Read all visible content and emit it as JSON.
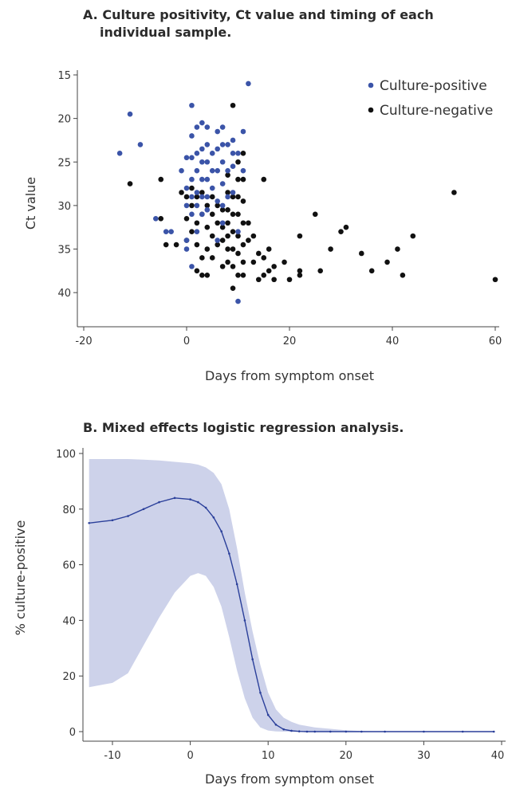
{
  "titles": {
    "a_line1": "A. Culture positivity, Ct value and timing of each",
    "a_line2": "individual sample.",
    "b": "B. Mixed effects logistic regression analysis."
  },
  "colors": {
    "positive": "#3b54a8",
    "negative": "#111111",
    "band": "#cdd2ea",
    "line": "#2a3f9a"
  },
  "chart_data": [
    {
      "type": "scatter",
      "xlabel": "Days from symptom onset",
      "ylabel": "Ct value",
      "xlim": [
        -20,
        60
      ],
      "ylim": [
        15,
        42
      ],
      "y_inverted": true,
      "xticks": [
        -20,
        0,
        20,
        40,
        60
      ],
      "yticks": [
        15,
        20,
        25,
        30,
        35,
        40
      ],
      "legend_position": "top-right",
      "series": [
        {
          "name": "Culture-positive",
          "points": [
            [
              -13,
              24
            ],
            [
              -11,
              19.5
            ],
            [
              -9,
              23
            ],
            [
              -6,
              31.5
            ],
            [
              -4,
              33
            ],
            [
              -3,
              33
            ],
            [
              -1,
              26
            ],
            [
              0,
              24.5
            ],
            [
              0,
              28
            ],
            [
              0,
              30
            ],
            [
              0,
              34
            ],
            [
              0,
              35
            ],
            [
              1,
              18.5
            ],
            [
              1,
              22
            ],
            [
              1,
              24.5
            ],
            [
              1,
              27
            ],
            [
              1,
              29
            ],
            [
              1,
              31
            ],
            [
              1,
              37
            ],
            [
              2,
              21
            ],
            [
              2,
              24
            ],
            [
              2,
              26
            ],
            [
              2,
              28.5
            ],
            [
              2,
              30
            ],
            [
              2,
              33
            ],
            [
              3,
              20.5
            ],
            [
              3,
              23.5
            ],
            [
              3,
              25
            ],
            [
              3,
              27
            ],
            [
              3,
              29
            ],
            [
              3,
              31
            ],
            [
              4,
              21
            ],
            [
              4,
              23
            ],
            [
              4,
              25
            ],
            [
              4,
              27
            ],
            [
              4,
              29
            ],
            [
              4,
              30.5
            ],
            [
              5,
              24
            ],
            [
              5,
              26
            ],
            [
              5,
              28
            ],
            [
              6,
              21.5
            ],
            [
              6,
              23.5
            ],
            [
              6,
              26
            ],
            [
              6,
              29.5
            ],
            [
              6,
              34
            ],
            [
              7,
              21
            ],
            [
              7,
              23
            ],
            [
              7,
              25
            ],
            [
              7,
              27.5
            ],
            [
              7,
              30
            ],
            [
              7,
              32
            ],
            [
              8,
              23
            ],
            [
              8,
              26
            ],
            [
              8,
              29
            ],
            [
              9,
              22.5
            ],
            [
              9,
              24
            ],
            [
              9,
              25.5
            ],
            [
              9,
              28.5
            ],
            [
              10,
              24
            ],
            [
              10,
              33
            ],
            [
              10,
              41
            ],
            [
              11,
              21.5
            ],
            [
              11,
              26
            ],
            [
              12,
              16
            ]
          ]
        },
        {
          "name": "Culture-negative",
          "points": [
            [
              -11,
              27.5
            ],
            [
              -5,
              27
            ],
            [
              -5,
              31.5
            ],
            [
              -4,
              34.5
            ],
            [
              -2,
              34.5
            ],
            [
              -1,
              28.5
            ],
            [
              0,
              29
            ],
            [
              0,
              31.5
            ],
            [
              0,
              34
            ],
            [
              1,
              28
            ],
            [
              1,
              30
            ],
            [
              1,
              33
            ],
            [
              2,
              29
            ],
            [
              2,
              32
            ],
            [
              2,
              34.5
            ],
            [
              2,
              37.5
            ],
            [
              3,
              28.5
            ],
            [
              3,
              31
            ],
            [
              3,
              36
            ],
            [
              3,
              38
            ],
            [
              4,
              30
            ],
            [
              4,
              32.5
            ],
            [
              4,
              35
            ],
            [
              4,
              38
            ],
            [
              5,
              29
            ],
            [
              5,
              31
            ],
            [
              5,
              33.5
            ],
            [
              5,
              36
            ],
            [
              6,
              30
            ],
            [
              6,
              32
            ],
            [
              6,
              34.5
            ],
            [
              7,
              30.5
            ],
            [
              7,
              32.5
            ],
            [
              7,
              34
            ],
            [
              7,
              37
            ],
            [
              8,
              26.5
            ],
            [
              8,
              28.5
            ],
            [
              8,
              30.5
            ],
            [
              8,
              32
            ],
            [
              8,
              33.5
            ],
            [
              8,
              35
            ],
            [
              8,
              36.5
            ],
            [
              9,
              18.5
            ],
            [
              9,
              29
            ],
            [
              9,
              31
            ],
            [
              9,
              33
            ],
            [
              9,
              35
            ],
            [
              9,
              37
            ],
            [
              9,
              39.5
            ],
            [
              10,
              25
            ],
            [
              10,
              27
            ],
            [
              10,
              29
            ],
            [
              10,
              31
            ],
            [
              10,
              33.5
            ],
            [
              10,
              35.5
            ],
            [
              10,
              38
            ],
            [
              11,
              24
            ],
            [
              11,
              27
            ],
            [
              11,
              29.5
            ],
            [
              11,
              32
            ],
            [
              11,
              34.5
            ],
            [
              11,
              36.5
            ],
            [
              11,
              38
            ],
            [
              12,
              32
            ],
            [
              12,
              34
            ],
            [
              13,
              33.5
            ],
            [
              13,
              36.5
            ],
            [
              14,
              35.5
            ],
            [
              14,
              38.5
            ],
            [
              15,
              27
            ],
            [
              15,
              36
            ],
            [
              15,
              38
            ],
            [
              16,
              35
            ],
            [
              16,
              37.5
            ],
            [
              17,
              37
            ],
            [
              17,
              38.5
            ],
            [
              19,
              36.5
            ],
            [
              20,
              38.5
            ],
            [
              22,
              33.5
            ],
            [
              22,
              37.5
            ],
            [
              22,
              38
            ],
            [
              25,
              31
            ],
            [
              26,
              37.5
            ],
            [
              28,
              35
            ],
            [
              30,
              33
            ],
            [
              31,
              32.5
            ],
            [
              34,
              35.5
            ],
            [
              36,
              37.5
            ],
            [
              39,
              36.5
            ],
            [
              41,
              35
            ],
            [
              42,
              38
            ],
            [
              44,
              33.5
            ],
            [
              52,
              28.5
            ],
            [
              60,
              38.5
            ]
          ]
        }
      ]
    },
    {
      "type": "line",
      "xlabel": "Days from symptom onset",
      "ylabel": "% culture-positive",
      "xlim": [
        -14,
        40
      ],
      "ylim": [
        0,
        100
      ],
      "xticks": [
        -10,
        0,
        10,
        20,
        30,
        40
      ],
      "yticks": [
        0,
        20,
        40,
        60,
        80,
        100
      ],
      "legend_position": "none",
      "x": [
        -13,
        -10,
        -8,
        -6,
        -4,
        -2,
        0,
        1,
        2,
        3,
        4,
        5,
        6,
        7,
        8,
        9,
        10,
        11,
        12,
        13,
        14,
        15,
        16,
        18,
        20,
        22,
        25,
        30,
        35,
        39
      ],
      "estimate": [
        75,
        76,
        77.5,
        80,
        82.5,
        84,
        83.5,
        82.5,
        80.5,
        77,
        72,
        64,
        53,
        40,
        26,
        14,
        6,
        2.5,
        0.8,
        0.3,
        0.1,
        0,
        0,
        0,
        0,
        0,
        0,
        0,
        0,
        0
      ],
      "ci_upper": [
        98,
        98,
        98,
        97.8,
        97.5,
        97,
        96.5,
        96,
        95,
        93,
        89,
        80,
        66,
        50,
        36,
        24,
        14,
        8,
        5,
        3.5,
        2.5,
        2,
        1.5,
        1,
        0.5,
        0.2,
        0.1,
        0,
        0,
        0
      ],
      "ci_lower": [
        16,
        17.5,
        21,
        31,
        41,
        50,
        56,
        57,
        56,
        52,
        45,
        34,
        22,
        12,
        5,
        1.5,
        0.4,
        0.1,
        0,
        0,
        0,
        0,
        0,
        0,
        0,
        0,
        0,
        0,
        0,
        0
      ]
    }
  ]
}
